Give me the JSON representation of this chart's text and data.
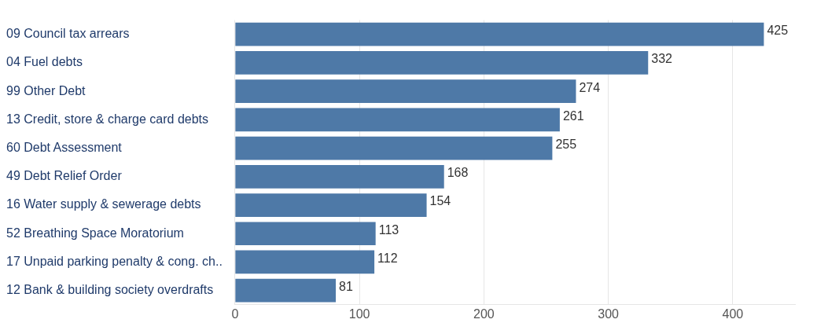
{
  "chart_data": {
    "type": "bar",
    "orientation": "horizontal",
    "categories": [
      "09 Council tax arrears",
      "04 Fuel debts",
      "99 Other Debt",
      "13 Credit, store & charge card debts",
      "60 Debt Assessment",
      "49 Debt Relief Order",
      "16 Water supply & sewerage debts",
      "52 Breathing Space Moratorium",
      "17 Unpaid parking penalty & cong. ch..",
      "12 Bank & building society overdrafts"
    ],
    "values": [
      425,
      332,
      274,
      261,
      255,
      168,
      154,
      113,
      112,
      81
    ],
    "color": "#4e79a7",
    "xlim": [
      0,
      450
    ],
    "xticks": [
      0,
      100,
      200,
      300,
      400
    ],
    "grid": "x",
    "data_labels": true,
    "legend": false
  }
}
